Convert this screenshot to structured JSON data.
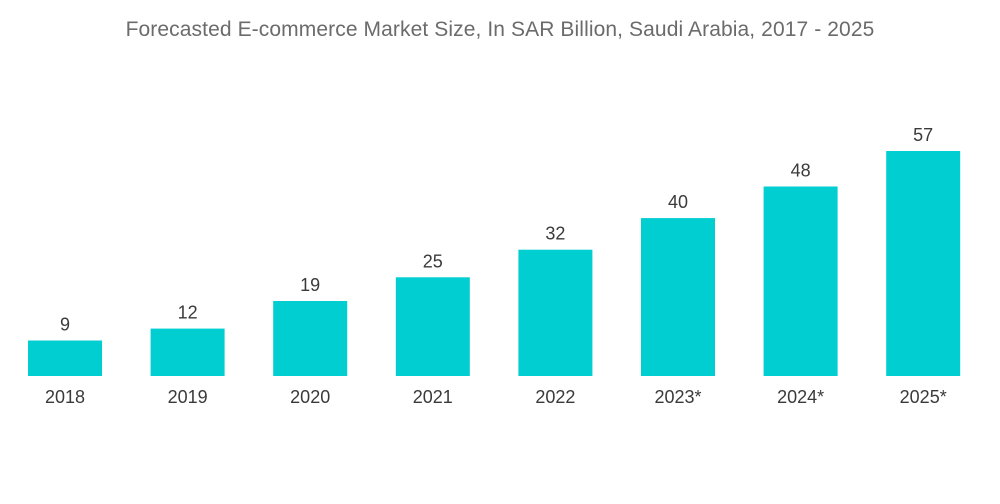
{
  "chart_data": {
    "type": "bar",
    "title": "Forecasted E-commerce Market Size, In SAR Billion, Saudi Arabia, 2017 - 2025",
    "categories": [
      "2018",
      "2019",
      "2020",
      "2021",
      "2022",
      "2023*",
      "2024*",
      "2025*"
    ],
    "values": [
      9,
      12,
      19,
      25,
      32,
      40,
      48,
      57
    ],
    "xlabel": "",
    "ylabel": "",
    "ylim": [
      0,
      57
    ],
    "grid": false,
    "legend": "none",
    "bar_color": "#00ced1"
  }
}
